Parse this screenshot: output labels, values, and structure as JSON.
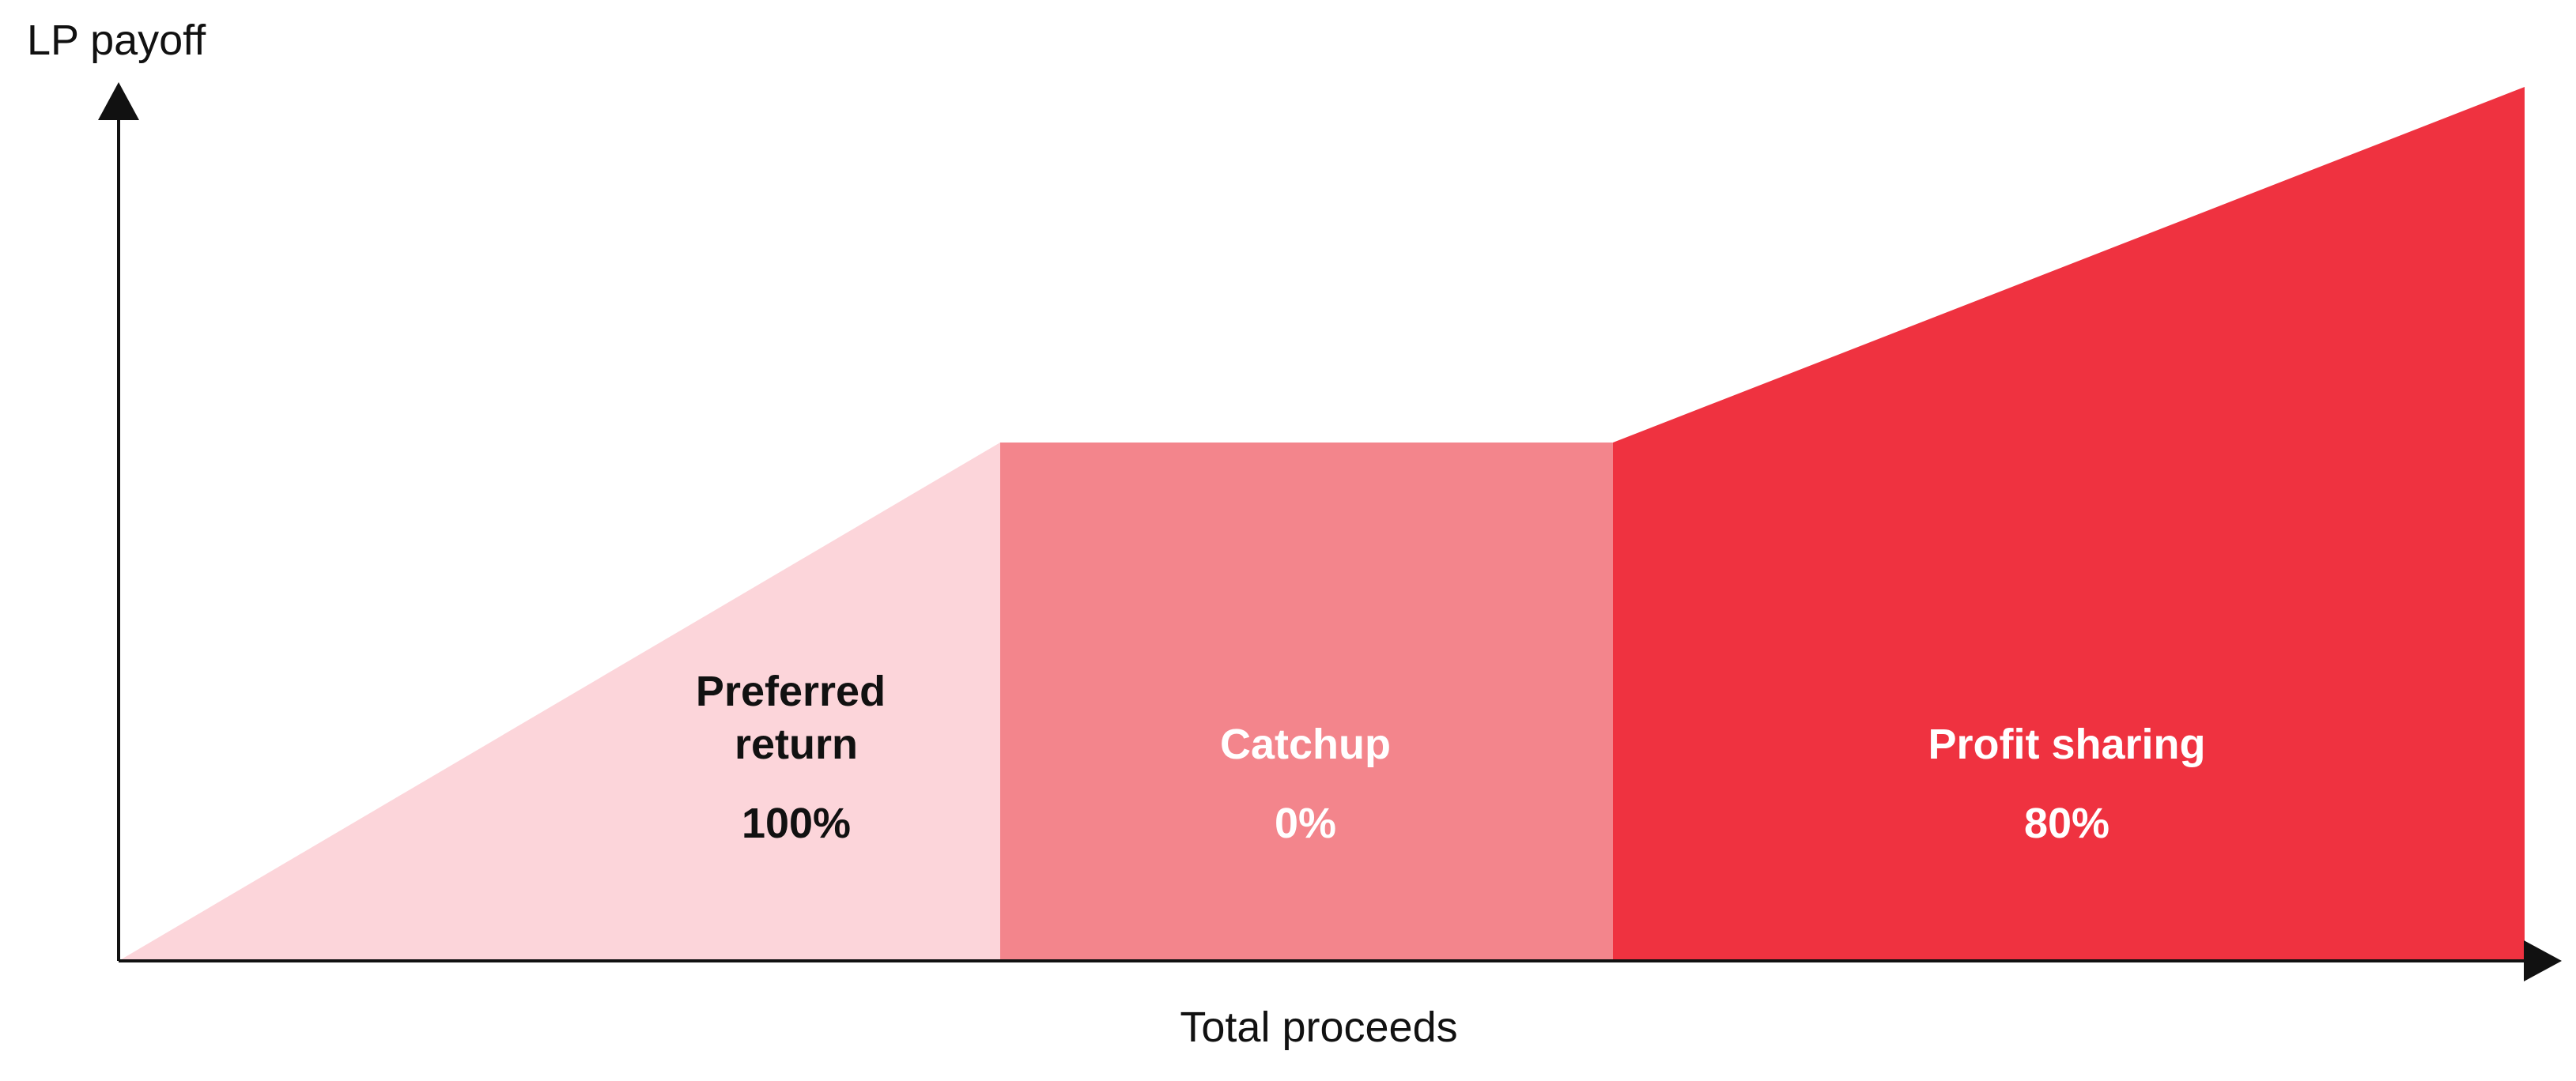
{
  "axes": {
    "y_label": "LP payoff",
    "x_label": "Total proceeds"
  },
  "colors": {
    "axis": "#111111",
    "preferred_return": "#fcd5da",
    "catchup": "#f3858c",
    "profit_sharing": "#ef3240",
    "label_dark": "#111111",
    "label_light": "#ffffff"
  },
  "regions": [
    {
      "id": "preferred-return",
      "name_lines": [
        "Preferred",
        "return"
      ],
      "pct": "100%"
    },
    {
      "id": "catchup",
      "name_lines": [
        "Catchup"
      ],
      "pct": "0%"
    },
    {
      "id": "profit-sharing",
      "name_lines": [
        "Profit sharing"
      ],
      "pct": "80%"
    }
  ]
}
